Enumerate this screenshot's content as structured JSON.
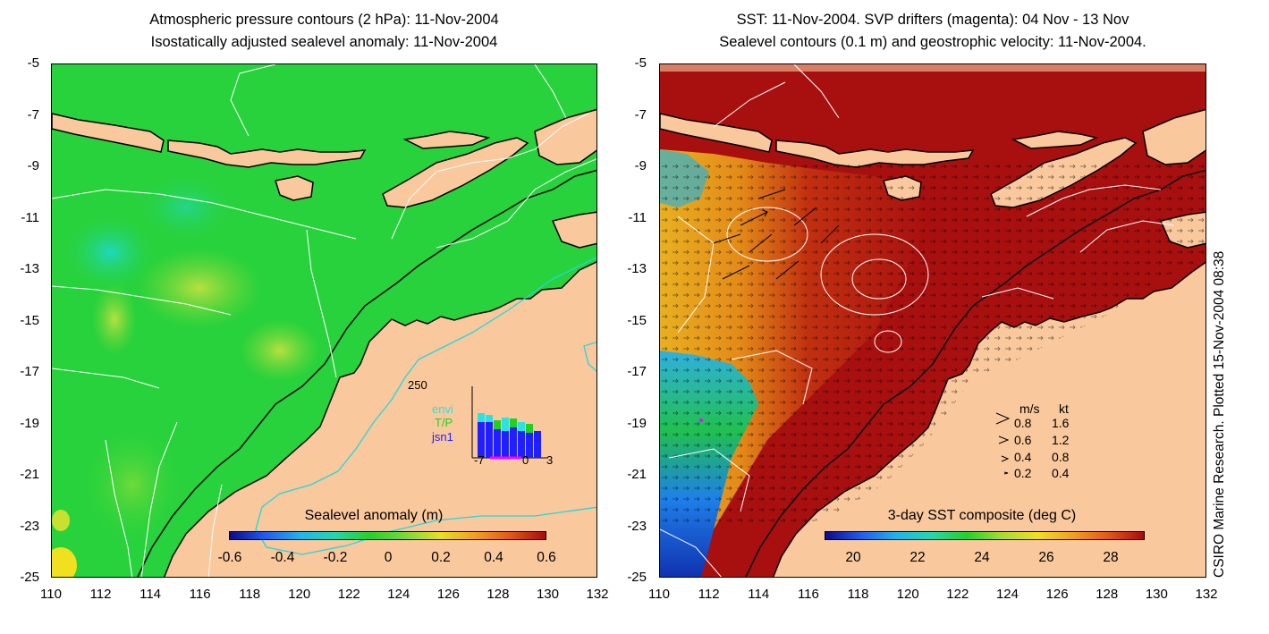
{
  "left": {
    "title_line1": "Atmospheric pressure contours (2 hPa): 11-Nov-2004",
    "title_line2": "Isostatically adjusted sealevel anomaly: 11-Nov-2004",
    "colorbar_title": "Sealevel anomaly (m)",
    "colorbar_ticks": [
      "-0.6",
      "-0.4",
      "-0.2",
      "0",
      "0.2",
      "0.4",
      "0.6"
    ],
    "inset": {
      "ymax_label": "250",
      "x_labels": [
        "-7",
        "0",
        "3"
      ],
      "legend": [
        "envi",
        "T/P",
        "jsn1"
      ],
      "legend_colors": [
        "#30e0e0",
        "#22d022",
        "#2020ff"
      ]
    }
  },
  "right": {
    "title_line1": "SST: 11-Nov-2004. SVP drifters (magenta): 04 Nov - 13 Nov",
    "title_line2": "Sealevel contours (0.1 m) and geostrophic velocity: 11-Nov-2004.",
    "colorbar_title": "3-day SST composite (deg C)",
    "colorbar_ticks": [
      "20",
      "22",
      "24",
      "26",
      "28"
    ],
    "velocity_legend": {
      "header_ms": "m/s",
      "header_kt": "kt",
      "rows": [
        {
          "ms": "0.8",
          "kt": "1.6"
        },
        {
          "ms": "0.6",
          "kt": "1.2"
        },
        {
          "ms": "0.4",
          "kt": "0.8"
        },
        {
          "ms": "0.2",
          "kt": "0.4"
        }
      ]
    }
  },
  "axes": {
    "x_ticks": [
      "110",
      "112",
      "114",
      "116",
      "118",
      "120",
      "122",
      "124",
      "126",
      "128",
      "130",
      "132"
    ],
    "y_ticks": [
      "-5",
      "-7",
      "-9",
      "-11",
      "-13",
      "-15",
      "-17",
      "-19",
      "-21",
      "-23",
      "-25"
    ]
  },
  "side_note": "CSIRO Marine Research. Plotted 15-Nov-2004 08:38",
  "colors": {
    "land": "#f9c89c",
    "ocean_sla": "#28d23c",
    "sst_warm": "#a81010",
    "sst_orange": "#e89020",
    "contour": "#ffffff",
    "isobath": "#20d8e0"
  }
}
